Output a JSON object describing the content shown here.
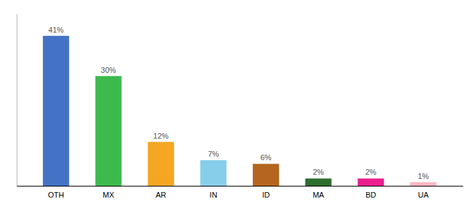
{
  "chart_data": {
    "type": "bar",
    "categories": [
      "OTH",
      "MX",
      "AR",
      "IN",
      "ID",
      "MA",
      "BD",
      "UA"
    ],
    "values": [
      41,
      30,
      12,
      7,
      6,
      2,
      2,
      1
    ],
    "value_labels": [
      "41%",
      "30%",
      "12%",
      "7%",
      "6%",
      "2%",
      "2%",
      "1%"
    ],
    "colors": [
      "#4472c4",
      "#3dba4e",
      "#f5a623",
      "#87ceeb",
      "#b5651d",
      "#2d6e2d",
      "#e91e8c",
      "#ffb6c1"
    ],
    "ylim": [
      0,
      47
    ],
    "data_labels": true,
    "tick_labels": "x"
  }
}
